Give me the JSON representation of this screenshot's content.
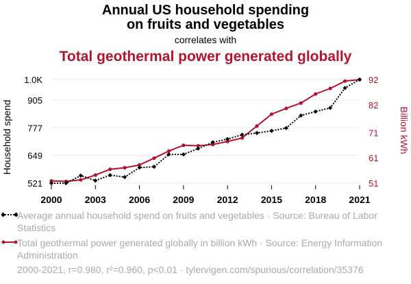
{
  "title_line1": "Annual US household spending",
  "title_line2": "on fruits and vegetables",
  "correlates_text": "correlates with",
  "subtitle": "Total geothermal power generated globally",
  "colors": {
    "series1": "#000000",
    "series2": "#b5122e",
    "legend_text": "#aaaaaa",
    "grid": "#eeeeee"
  },
  "legend": [
    {
      "text": "Average annual household spend on fruits and vegetables · Source: Bureau of Labor Statistics"
    },
    {
      "text": "Total geothermal power generated globally in billion kWh · Source: Energy Information Administration"
    }
  ],
  "footnote": "2000-2021, r=0.980, r²=0.960, p<0.01 · tylervigen.com/spurious/correlation/35376",
  "chart_data": {
    "type": "line",
    "x": [
      2000,
      2001,
      2002,
      2003,
      2004,
      2005,
      2006,
      2007,
      2008,
      2009,
      2010,
      2011,
      2012,
      2013,
      2014,
      2015,
      2016,
      2017,
      2018,
      2019,
      2020,
      2021
    ],
    "xticks": [
      "2000",
      "2003",
      "2006",
      "2009",
      "2012",
      "2015",
      "2018",
      "2021"
    ],
    "left_axis": {
      "label": "Household spend",
      "ylim": [
        521,
        1000
      ],
      "ticks": [
        521,
        649,
        777,
        905,
        1000
      ],
      "tick_labels": [
        "521",
        "649",
        "777",
        "905",
        "1.0K"
      ]
    },
    "right_axis": {
      "label": "Billion kWh",
      "ylim": [
        51,
        92
      ],
      "ticks": [
        51,
        61,
        71,
        82,
        92
      ],
      "tick_labels": [
        "51",
        "61",
        "71",
        "82",
        "92"
      ]
    },
    "series": [
      {
        "name": "Average annual household spend on fruits and vegetables",
        "axis": "left",
        "style": "dotted",
        "values": [
          521,
          521,
          556,
          533,
          558,
          549,
          593,
          597,
          654,
          654,
          681,
          710,
          725,
          745,
          753,
          763,
          776,
          834,
          852,
          869,
          961,
          1000
        ]
      },
      {
        "name": "Total geothermal power generated globally in billion kWh",
        "axis": "right",
        "style": "solid",
        "values": [
          51.9,
          51.7,
          52.3,
          54.2,
          56.5,
          57.1,
          58.2,
          60.9,
          63.7,
          66.0,
          65.8,
          66.3,
          67.5,
          68.9,
          73.6,
          78.3,
          80.6,
          82.7,
          86.3,
          88.5,
          91.4,
          92.0
        ]
      }
    ]
  }
}
